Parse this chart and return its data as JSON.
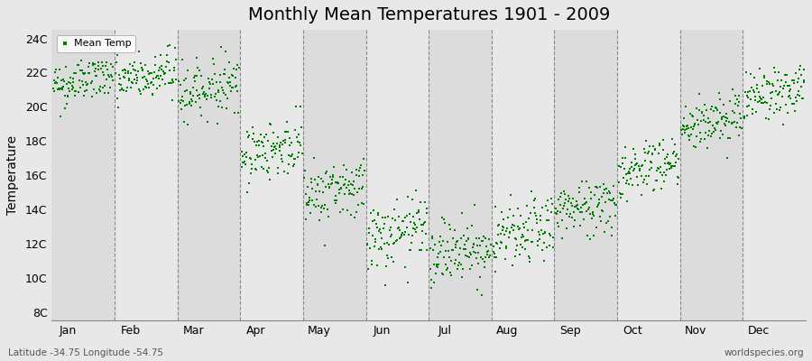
{
  "title": "Monthly Mean Temperatures 1901 - 2009",
  "ylabel": "Temperature",
  "xlabel_labels": [
    "Jan",
    "Feb",
    "Mar",
    "Apr",
    "May",
    "Jun",
    "Jul",
    "Aug",
    "Sep",
    "Oct",
    "Nov",
    "Dec"
  ],
  "ytick_labels": [
    "8C",
    "10C",
    "12C",
    "14C",
    "16C",
    "18C",
    "20C",
    "22C",
    "24C"
  ],
  "ytick_values": [
    8,
    10,
    12,
    14,
    16,
    18,
    20,
    22,
    24
  ],
  "ylim": [
    7.5,
    24.5
  ],
  "dot_color": "#008000",
  "dot_size": 3,
  "legend_label": "Mean Temp",
  "subtitle": "Latitude -34.75 Longitude -54.75",
  "watermark": "worldspecies.org",
  "background_color": "#e8e8e8",
  "plot_bg_color": "#e8e8e8",
  "n_years": 109,
  "monthly_means": [
    21.2,
    21.4,
    20.8,
    17.2,
    14.8,
    12.2,
    11.3,
    12.2,
    13.8,
    16.2,
    18.8,
    20.5
  ],
  "monthly_stds": [
    0.7,
    0.75,
    0.8,
    0.85,
    0.9,
    1.0,
    1.0,
    0.95,
    0.85,
    0.85,
    0.8,
    0.75
  ],
  "warming_trend": 0.006,
  "seed": 42
}
